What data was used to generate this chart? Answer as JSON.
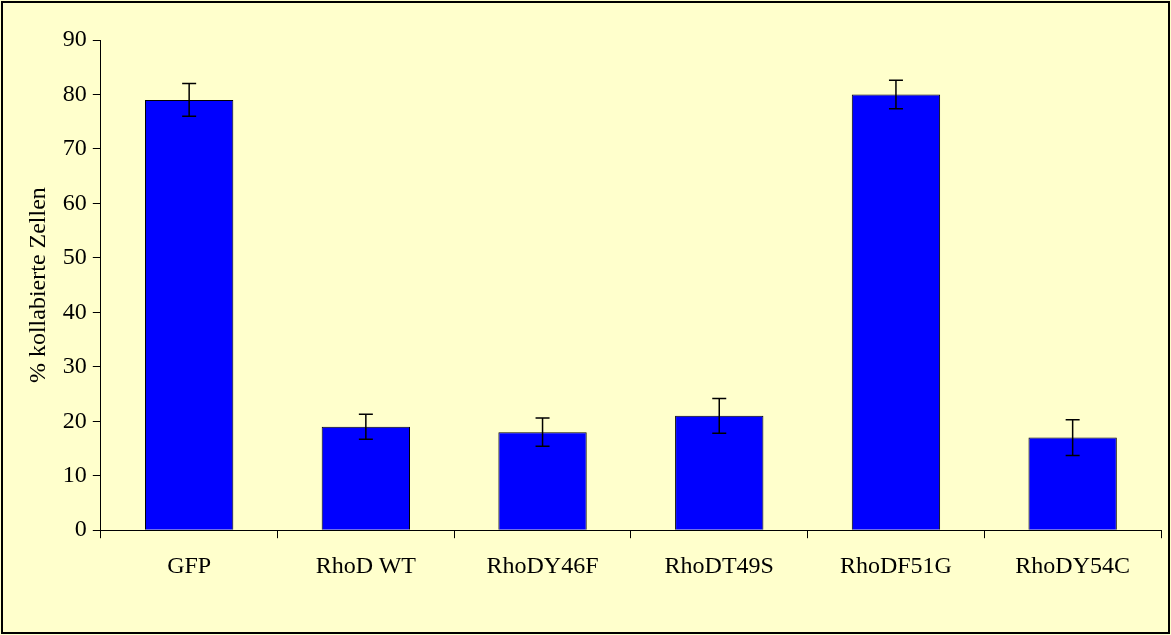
{
  "chart_data": {
    "type": "bar",
    "ylabel": "% kollabierte Zellen",
    "categories": [
      "GFP",
      "RhoD WT",
      "RhoDY46F",
      "RhoDT49S",
      "RhoDF51G",
      "RhoDY54C"
    ],
    "values": [
      79,
      19,
      18,
      21,
      80,
      17
    ],
    "errors": [
      3,
      2.3,
      2.6,
      3.2,
      2.6,
      3.3
    ],
    "color": "#0000ff",
    "ylim": [
      0,
      90
    ],
    "yticks": [
      0,
      10,
      20,
      30,
      40,
      50,
      60,
      70,
      80,
      90
    ],
    "grid": false,
    "legend": false
  }
}
